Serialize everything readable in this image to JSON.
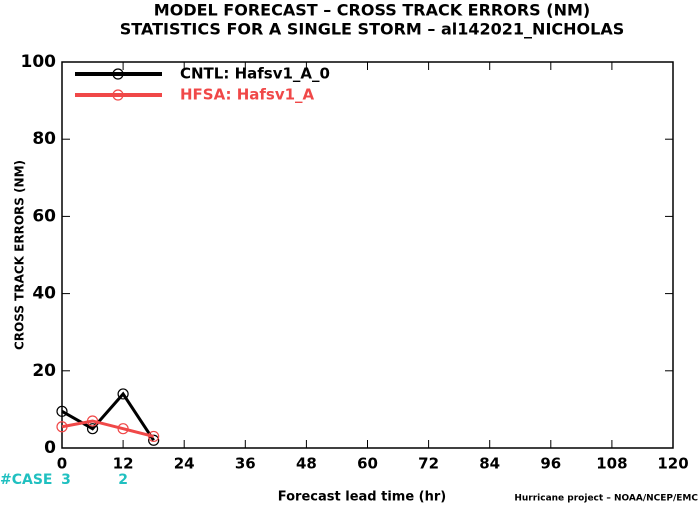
{
  "chart_data": {
    "type": "line",
    "title": "MODEL FORECAST – CROSS TRACK ERRORS (NM)",
    "subtitle": "STATISTICS FOR A SINGLE STORM – al142021_NICHOLAS",
    "x_label": "Forecast lead time (hr)",
    "y_label": "CROSS TRACK ERRORS (NM)",
    "footer": "Hurricane project – NOAA/NCEP/EMC",
    "x": [
      0,
      6,
      12,
      18
    ],
    "series": [
      {
        "name": "CNTL: Hafsv1_A_0",
        "color": "#000000",
        "values": [
          9.5,
          5,
          14,
          2
        ]
      },
      {
        "name": "HFSA: Hafsv1_A",
        "color": "#f04848",
        "values": [
          5.5,
          7,
          5,
          3
        ]
      }
    ],
    "xlim": [
      0,
      120
    ],
    "xticks": [
      0,
      12,
      24,
      36,
      48,
      60,
      72,
      84,
      96,
      108,
      120
    ],
    "ylim": [
      0,
      100
    ],
    "yticks": [
      0,
      20,
      40,
      60,
      80,
      100
    ],
    "legend": "upper-left",
    "cases": {
      "label": "#CASE",
      "x": [
        0,
        12
      ],
      "counts": [
        3,
        2
      ],
      "color": "#20c0c0"
    }
  }
}
